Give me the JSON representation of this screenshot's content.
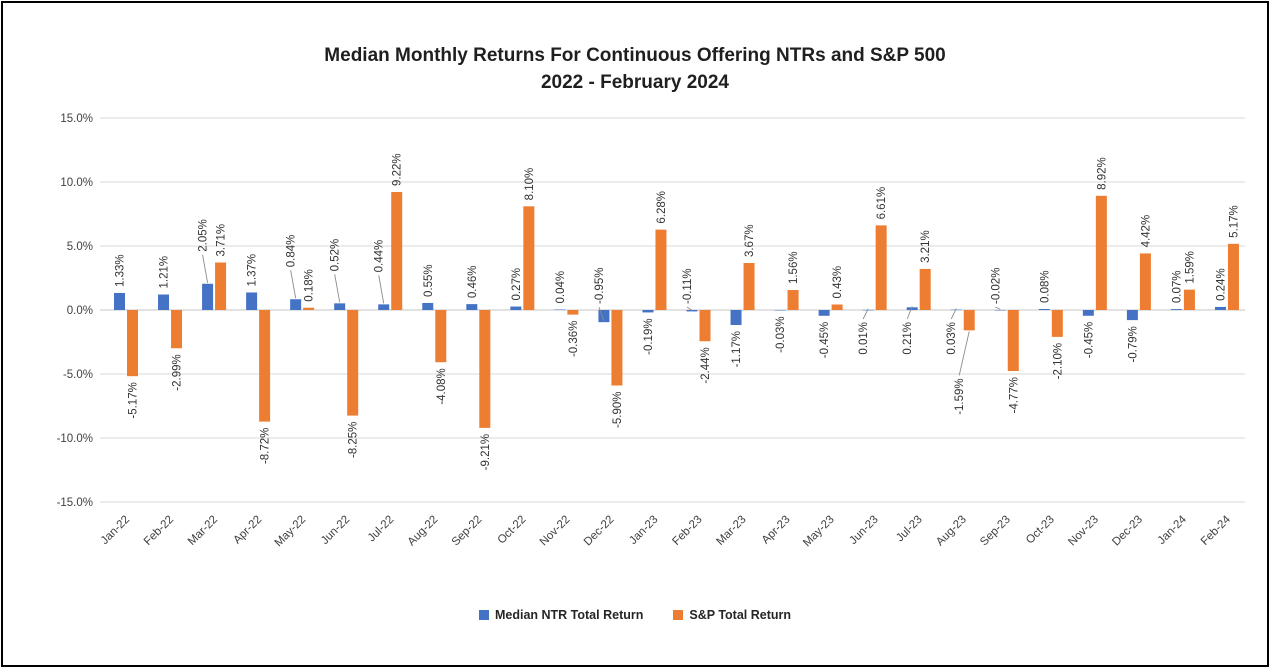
{
  "title": {
    "line1": "Median Monthly Returns For Continuous Offering NTRs and S&P 500",
    "line2": "2022 - February 2024"
  },
  "legend": [
    {
      "label": "Median NTR Total Return",
      "color": "#4472C4"
    },
    {
      "label": "S&P Total Return",
      "color": "#ED7D31"
    }
  ],
  "colors": {
    "ntr_blue": "#4472C4",
    "sp_orange": "#ED7D31",
    "gridline": "#D9D9D9",
    "zero_axis": "#C6C6C6",
    "axis_text": "#404040",
    "label_text": "#333333",
    "leader_line": "#8C8C8C"
  },
  "chart_data": {
    "type": "bar",
    "title": "Median Monthly Returns For Continuous Offering NTRs and S&P 500 2022 - February 2024",
    "xlabel": "",
    "ylabel": "",
    "ylim": [
      -15,
      15
    ],
    "ytick_step": 5,
    "ytick_labels": [
      "15.0%",
      "10.0%",
      "5.0%",
      "0.0%",
      "-5.0%",
      "-10.0%",
      "-15.0%"
    ],
    "grid": true,
    "legend_position": "bottom",
    "label_format": "0.00%",
    "categories": [
      "Jan-22",
      "Feb-22",
      "Mar-22",
      "Apr-22",
      "May-22",
      "Jun-22",
      "Jul-22",
      "Aug-22",
      "Sep-22",
      "Oct-22",
      "Nov-22",
      "Dec-22",
      "Jan-23",
      "Feb-23",
      "Mar-23",
      "Apr-23",
      "May-23",
      "Jun-23",
      "Jul-23",
      "Aug-23",
      "Sep-23",
      "Oct-23",
      "Nov-23",
      "Dec-23",
      "Jan-24",
      "Feb-24"
    ],
    "series": [
      {
        "name": "Median NTR Total Return",
        "color": "#4472C4",
        "values": [
          1.33,
          1.21,
          2.05,
          1.37,
          0.84,
          0.52,
          0.44,
          0.55,
          0.46,
          0.27,
          0.04,
          -0.95,
          -0.19,
          -0.11,
          -1.17,
          -0.03,
          -0.45,
          0.01,
          0.21,
          0.03,
          -0.02,
          0.08,
          -0.45,
          -0.79,
          0.07,
          0.24
        ]
      },
      {
        "name": "S&P Total Return",
        "color": "#ED7D31",
        "values": [
          -5.17,
          -2.99,
          3.71,
          -8.72,
          0.18,
          -8.25,
          9.22,
          -4.08,
          -9.21,
          8.1,
          -0.36,
          -5.9,
          6.28,
          -2.44,
          3.67,
          1.56,
          0.43,
          6.61,
          3.21,
          -1.59,
          -4.77,
          -2.1,
          8.92,
          4.42,
          1.59,
          5.17
        ]
      }
    ],
    "label_overrides": {
      "0-2": {
        "dy": -26,
        "dx": -5,
        "leader": true
      },
      "0-4": {
        "dy": -26,
        "dx": -5,
        "leader": true
      },
      "0-5": {
        "dy": -26,
        "dx": -5,
        "leader": true
      },
      "0-6": {
        "dy": -26,
        "dx": -5,
        "leader": true
      },
      "0-11": {
        "side": "above",
        "dx": -5,
        "leader": true
      },
      "0-13": {
        "side": "above",
        "dx": -5,
        "leader": true
      },
      "0-17": {
        "side": "below",
        "dy": 6,
        "dx": -5,
        "leader": true
      },
      "0-18": {
        "side": "below",
        "dy": 6,
        "dx": -5,
        "leader": true
      },
      "0-19": {
        "side": "below",
        "dy": 6,
        "dx": -5,
        "leader": true
      },
      "1-19": {
        "dy": 42,
        "dx": -10,
        "leader": true
      },
      "0-20": {
        "side": "above",
        "dx": -5,
        "leader": true
      }
    }
  }
}
